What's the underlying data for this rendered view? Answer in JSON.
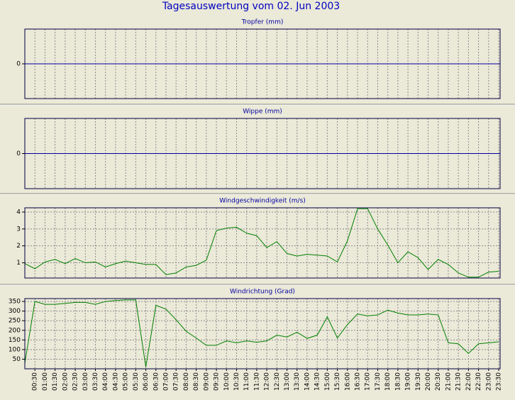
{
  "title": "Tagesauswertung vom 02. Jun 2003",
  "chart_data": [
    {
      "type": "line",
      "title": "Tropfer (mm)",
      "ylim": [
        -1,
        1
      ],
      "yticks": [
        0
      ]
    },
    {
      "type": "line",
      "title": "Wippe (mm)",
      "ylim": [
        -1,
        1
      ],
      "yticks": [
        0
      ]
    },
    {
      "type": "line",
      "title": "Windgeschwindigkeit (m/s)",
      "ylim": [
        0.1,
        4.25
      ],
      "yticks": [
        1,
        2,
        3,
        4
      ],
      "series": [
        {
          "color": "#008000",
          "values": [
            0.95,
            0.65,
            1.05,
            1.2,
            0.95,
            1.25,
            1.0,
            1.05,
            0.75,
            0.95,
            1.1,
            1.0,
            0.9,
            0.9,
            0.3,
            0.4,
            0.75,
            0.85,
            1.15,
            2.9,
            3.05,
            3.1,
            2.75,
            2.6,
            1.9,
            2.25,
            1.55,
            1.4,
            1.5,
            1.45,
            1.4,
            1.05,
            2.3,
            4.2,
            4.2,
            3.0,
            2.05,
            1.0,
            1.65,
            1.3,
            0.6,
            1.2,
            0.9,
            0.4,
            0.15,
            0.15,
            0.45,
            0.5
          ]
        }
      ]
    },
    {
      "type": "line",
      "title": "Windrichtung (Grad)",
      "ylim": [
        0,
        365
      ],
      "yticks": [
        50,
        100,
        150,
        200,
        250,
        300,
        350
      ],
      "categories": [
        null,
        "00:30",
        "01:00",
        "01:30",
        "02:00",
        "02:30",
        "03:00",
        "03:30",
        "04:00",
        "04:30",
        "05:00",
        "05:30",
        "06:00",
        "06:30",
        "07:00",
        "07:30",
        "08:00",
        "08:30",
        "09:00",
        "09:30",
        "10:00",
        "10:30",
        "11:00",
        "11:30",
        "12:00",
        "12:30",
        "13:00",
        "13:30",
        "14:00",
        "14:30",
        "15:00",
        "15:30",
        "16:00",
        "16:30",
        "17:00",
        "17:30",
        "18:00",
        "18:30",
        "19:00",
        "19:30",
        "20:00",
        "20:30",
        "21:00",
        "21:30",
        "22:00",
        "22:30",
        "23:00",
        "23:30"
      ],
      "series": [
        {
          "color": "#008000",
          "values": [
            30,
            350,
            335,
            335,
            340,
            345,
            345,
            335,
            350,
            355,
            358,
            358,
            10,
            330,
            310,
            255,
            195,
            160,
            122,
            122,
            145,
            135,
            145,
            138,
            145,
            175,
            165,
            190,
            158,
            175,
            270,
            160,
            230,
            285,
            275,
            280,
            305,
            290,
            280,
            280,
            285,
            280,
            135,
            130,
            80,
            130,
            135,
            140
          ]
        }
      ]
    }
  ]
}
